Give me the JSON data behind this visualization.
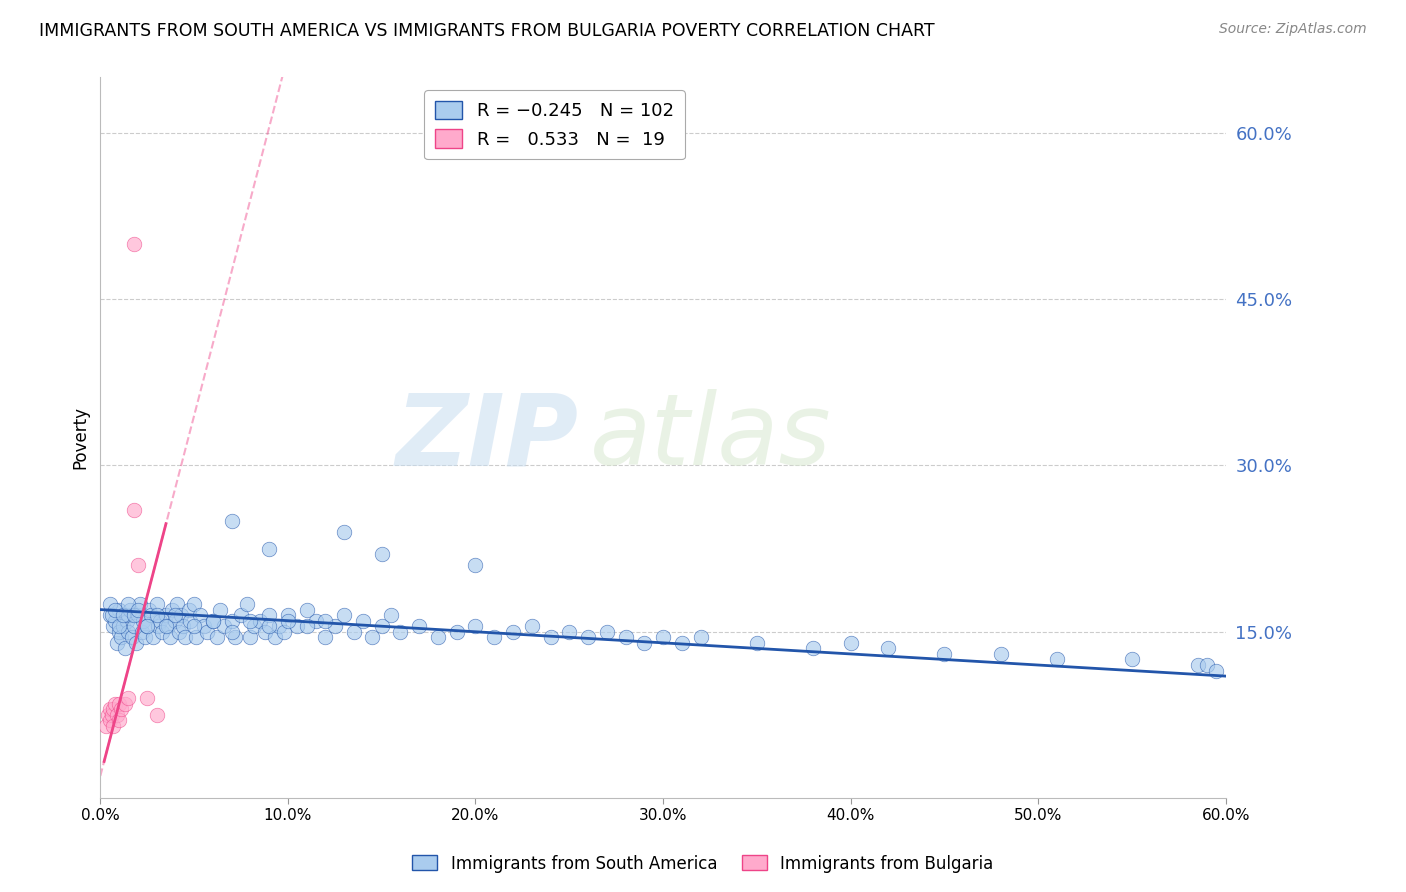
{
  "title": "IMMIGRANTS FROM SOUTH AMERICA VS IMMIGRANTS FROM BULGARIA POVERTY CORRELATION CHART",
  "source": "Source: ZipAtlas.com",
  "ylabel_left": "Poverty",
  "xlim": [
    0.0,
    0.6
  ],
  "ylim": [
    0.0,
    0.65
  ],
  "xtick_labels": [
    "0.0%",
    "10.0%",
    "20.0%",
    "30.0%",
    "40.0%",
    "50.0%",
    "60.0%"
  ],
  "xtick_values": [
    0.0,
    0.1,
    0.2,
    0.3,
    0.4,
    0.5,
    0.6
  ],
  "ytick_labels_right": [
    "15.0%",
    "30.0%",
    "45.0%",
    "60.0%"
  ],
  "ytick_values_right": [
    0.15,
    0.3,
    0.45,
    0.6
  ],
  "grid_color": "#cccccc",
  "watermark_zip": "ZIP",
  "watermark_atlas": "atlas",
  "color_blue": "#aaccee",
  "color_pink": "#ffaacc",
  "color_blue_line": "#2255aa",
  "color_pink_line": "#ee4488",
  "legend_label1": "Immigrants from South America",
  "legend_label2": "Immigrants from Bulgaria",
  "sa_x": [
    0.005,
    0.007,
    0.008,
    0.009,
    0.01,
    0.01,
    0.011,
    0.012,
    0.013,
    0.014,
    0.015,
    0.015,
    0.016,
    0.017,
    0.018,
    0.019,
    0.02,
    0.021,
    0.022,
    0.023,
    0.024,
    0.025,
    0.026,
    0.027,
    0.028,
    0.03,
    0.031,
    0.032,
    0.033,
    0.035,
    0.036,
    0.037,
    0.038,
    0.04,
    0.041,
    0.042,
    0.043,
    0.044,
    0.045,
    0.047,
    0.048,
    0.05,
    0.051,
    0.053,
    0.055,
    0.057,
    0.06,
    0.062,
    0.064,
    0.066,
    0.07,
    0.072,
    0.075,
    0.078,
    0.08,
    0.082,
    0.085,
    0.088,
    0.09,
    0.093,
    0.095,
    0.098,
    0.1,
    0.105,
    0.11,
    0.115,
    0.12,
    0.125,
    0.13,
    0.135,
    0.14,
    0.145,
    0.15,
    0.155,
    0.16,
    0.17,
    0.18,
    0.19,
    0.2,
    0.21,
    0.22,
    0.23,
    0.24,
    0.25,
    0.26,
    0.27,
    0.28,
    0.29,
    0.3,
    0.31,
    0.32,
    0.35,
    0.38,
    0.4,
    0.42,
    0.45,
    0.48,
    0.51,
    0.55,
    0.585,
    0.59,
    0.595
  ],
  "sa_y": [
    0.165,
    0.155,
    0.16,
    0.14,
    0.15,
    0.17,
    0.145,
    0.155,
    0.135,
    0.16,
    0.15,
    0.165,
    0.17,
    0.145,
    0.155,
    0.14,
    0.165,
    0.175,
    0.15,
    0.16,
    0.145,
    0.155,
    0.17,
    0.165,
    0.145,
    0.175,
    0.155,
    0.16,
    0.15,
    0.165,
    0.155,
    0.145,
    0.17,
    0.16,
    0.175,
    0.15,
    0.165,
    0.155,
    0.145,
    0.17,
    0.16,
    0.175,
    0.145,
    0.165,
    0.155,
    0.15,
    0.16,
    0.145,
    0.17,
    0.155,
    0.16,
    0.145,
    0.165,
    0.175,
    0.145,
    0.155,
    0.16,
    0.15,
    0.165,
    0.145,
    0.155,
    0.15,
    0.165,
    0.155,
    0.17,
    0.16,
    0.145,
    0.155,
    0.165,
    0.15,
    0.16,
    0.145,
    0.155,
    0.165,
    0.15,
    0.155,
    0.145,
    0.15,
    0.155,
    0.145,
    0.15,
    0.155,
    0.145,
    0.15,
    0.145,
    0.15,
    0.145,
    0.14,
    0.145,
    0.14,
    0.145,
    0.14,
    0.135,
    0.14,
    0.135,
    0.13,
    0.13,
    0.125,
    0.125,
    0.12,
    0.12,
    0.115
  ],
  "sa_x_extra": [
    0.005,
    0.006,
    0.008,
    0.01,
    0.012,
    0.015,
    0.018,
    0.02,
    0.025,
    0.03,
    0.035,
    0.04,
    0.05,
    0.06,
    0.07,
    0.08,
    0.09,
    0.1,
    0.11,
    0.12,
    0.13,
    0.07,
    0.09,
    0.15,
    0.2
  ],
  "sa_y_extra": [
    0.175,
    0.165,
    0.17,
    0.155,
    0.165,
    0.175,
    0.165,
    0.17,
    0.155,
    0.165,
    0.155,
    0.165,
    0.155,
    0.16,
    0.15,
    0.16,
    0.155,
    0.16,
    0.155,
    0.16,
    0.24,
    0.25,
    0.225,
    0.22,
    0.21
  ],
  "bg_x": [
    0.003,
    0.004,
    0.005,
    0.005,
    0.006,
    0.007,
    0.007,
    0.008,
    0.009,
    0.01,
    0.01,
    0.011,
    0.013,
    0.015,
    0.018,
    0.02,
    0.025,
    0.03,
    0.018
  ],
  "bg_y": [
    0.065,
    0.075,
    0.07,
    0.08,
    0.075,
    0.08,
    0.065,
    0.085,
    0.075,
    0.085,
    0.07,
    0.08,
    0.085,
    0.09,
    0.26,
    0.21,
    0.09,
    0.075,
    0.5
  ]
}
